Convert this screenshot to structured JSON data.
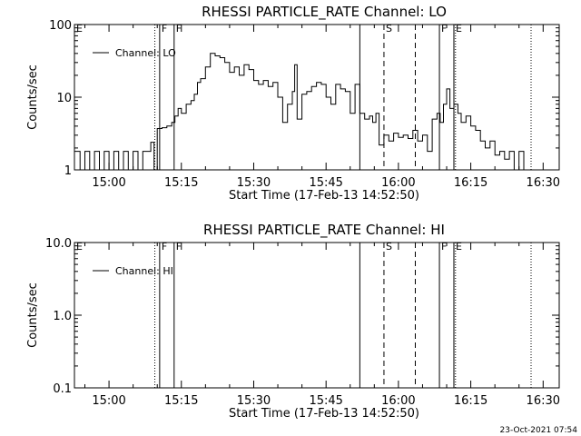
{
  "footer_text": "23-Oct-2021 07:54",
  "chart_data": [
    {
      "type": "line",
      "title": "RHESSI PARTICLE_RATE Channel: LO",
      "xlabel": "Start Time (17-Feb-13 14:52:50)",
      "ylabel": "Counts/sec",
      "yscale": "log",
      "ylim": [
        1,
        100
      ],
      "xlim": [
        "14:52:50",
        "16:33:20"
      ],
      "x_ticks": [
        "15:00",
        "15:15",
        "15:30",
        "15:45",
        "16:00",
        "16:15",
        "16:30"
      ],
      "y_ticks": [
        {
          "value": 1,
          "label": "1"
        },
        {
          "value": 10,
          "label": "10"
        },
        {
          "value": 100,
          "label": "100"
        }
      ],
      "legend": {
        "label": "Channel: LO",
        "position": "top-left"
      },
      "markers": [
        {
          "label": "E",
          "time": "14:52:50",
          "style": "none"
        },
        {
          "label": "",
          "time": "15:09:30",
          "style": "dotted"
        },
        {
          "label": "F",
          "time": "15:10:30",
          "style": "solid"
        },
        {
          "label": "F",
          "time": "15:13:30",
          "style": "solid"
        },
        {
          "label": "",
          "time": "15:52:00",
          "style": "solid"
        },
        {
          "label": "S",
          "time": "15:57:00",
          "style": "dashed"
        },
        {
          "label": "",
          "time": "16:03:30",
          "style": "dashed"
        },
        {
          "label": "F",
          "time": "16:08:30",
          "style": "solid"
        },
        {
          "label": "E",
          "time": "16:11:30",
          "style": "solid"
        },
        {
          "label": "",
          "time": "16:11:50",
          "style": "dotted"
        },
        {
          "label": "",
          "time": "16:27:30",
          "style": "dotted"
        }
      ],
      "series": [
        {
          "x": [
            "14:52:50",
            "14:54:00",
            "14:55:00",
            "14:56:00",
            "14:57:00",
            "14:58:00",
            "14:59:00",
            "15:00:00",
            "15:01:00",
            "15:02:00",
            "15:03:00",
            "15:04:00",
            "15:05:00",
            "15:06:00",
            "15:07:00",
            "15:08:00",
            "15:08:40",
            "15:09:20",
            "15:10:00",
            "15:11:00",
            "15:12:00",
            "15:13:00",
            "15:13:40",
            "15:14:20",
            "15:15:00",
            "15:16:00",
            "15:17:00",
            "15:17:40",
            "15:18:20",
            "15:19:00",
            "15:20:00",
            "15:21:00",
            "15:22:00",
            "15:23:00",
            "15:24:00",
            "15:25:00",
            "15:26:00",
            "15:27:00",
            "15:28:00",
            "15:29:00",
            "15:30:00",
            "15:31:00",
            "15:32:00",
            "15:33:00",
            "15:34:00",
            "15:35:00",
            "15:36:00",
            "15:37:00",
            "15:38:00",
            "15:38:30",
            "15:39:00",
            "15:40:00",
            "15:41:00",
            "15:42:00",
            "15:43:00",
            "15:44:00",
            "15:45:00",
            "15:46:00",
            "15:47:00",
            "15:48:00",
            "15:49:00",
            "15:50:00",
            "15:51:00",
            "15:52:00",
            "15:53:00",
            "15:54:00",
            "15:54:40",
            "15:55:20",
            "15:56:00",
            "15:57:00",
            "15:58:00",
            "15:59:00",
            "16:00:00",
            "16:01:00",
            "16:02:00",
            "16:03:00",
            "16:04:00",
            "16:05:00",
            "16:06:00",
            "16:07:00",
            "16:08:00",
            "16:08:40",
            "16:09:20",
            "16:10:00",
            "16:10:40",
            "16:11:30",
            "16:12:20",
            "16:13:00",
            "16:14:00",
            "16:15:00",
            "16:16:00",
            "16:17:00",
            "16:18:00",
            "16:19:00",
            "16:20:00",
            "16:21:00",
            "16:22:00",
            "16:23:00",
            "16:24:00",
            "16:25:00",
            "16:26:00",
            "16:27:00"
          ],
          "y": [
            1.8,
            1.0,
            1.8,
            1.0,
            1.8,
            1.0,
            1.8,
            1.0,
            1.8,
            1.0,
            1.8,
            1.0,
            1.8,
            1.0,
            1.8,
            1.8,
            2.4,
            1.0,
            3.7,
            3.8,
            4.0,
            4.5,
            5.5,
            7.0,
            6.0,
            8.0,
            9.0,
            11.0,
            16.0,
            18.0,
            26.0,
            40.0,
            37.0,
            35.0,
            30.0,
            22.0,
            26.0,
            20.0,
            28.0,
            24.0,
            17.0,
            15.0,
            17.0,
            14.0,
            16.0,
            10.0,
            4.5,
            8.0,
            12.0,
            28.0,
            5.0,
            11.0,
            12.0,
            14.0,
            16.0,
            15.0,
            10.0,
            8.0,
            15.0,
            13.0,
            12.0,
            6.0,
            15.0,
            6.0,
            5.0,
            5.5,
            4.5,
            6.0,
            2.2,
            3.0,
            2.5,
            3.2,
            2.8,
            3.0,
            2.7,
            3.5,
            2.5,
            3.0,
            1.8,
            5.0,
            6.0,
            4.5,
            8.0,
            13.0,
            7.0,
            8.0,
            6.0,
            4.5,
            5.5,
            4.0,
            3.5,
            2.5,
            2.0,
            2.5,
            1.6,
            1.8,
            1.4,
            1.8,
            1.0,
            1.8,
            1.0,
            1.0
          ]
        }
      ]
    },
    {
      "type": "line",
      "title": "RHESSI PARTICLE_RATE Channel: HI",
      "xlabel": "Start Time (17-Feb-13 14:52:50)",
      "ylabel": "Counts/sec",
      "yscale": "log",
      "ylim": [
        0.1,
        10
      ],
      "xlim": [
        "14:52:50",
        "16:33:20"
      ],
      "x_ticks": [
        "15:00",
        "15:15",
        "15:30",
        "15:45",
        "16:00",
        "16:15",
        "16:30"
      ],
      "y_ticks": [
        {
          "value": 0.1,
          "label": "0.1"
        },
        {
          "value": 1,
          "label": "1.0"
        },
        {
          "value": 10,
          "label": "10.0"
        }
      ],
      "legend": {
        "label": "Channel: HI",
        "position": "top-left"
      },
      "markers": [
        {
          "label": "E",
          "time": "14:52:50",
          "style": "none"
        },
        {
          "label": "",
          "time": "15:09:30",
          "style": "dotted"
        },
        {
          "label": "F",
          "time": "15:10:30",
          "style": "solid"
        },
        {
          "label": "F",
          "time": "15:13:30",
          "style": "solid"
        },
        {
          "label": "",
          "time": "15:52:00",
          "style": "solid"
        },
        {
          "label": "S",
          "time": "15:57:00",
          "style": "dashed"
        },
        {
          "label": "",
          "time": "16:03:30",
          "style": "dashed"
        },
        {
          "label": "F",
          "time": "16:08:30",
          "style": "solid"
        },
        {
          "label": "E",
          "time": "16:11:30",
          "style": "solid"
        },
        {
          "label": "",
          "time": "16:11:50",
          "style": "dotted"
        },
        {
          "label": "",
          "time": "16:27:30",
          "style": "dotted"
        }
      ],
      "series": []
    }
  ]
}
